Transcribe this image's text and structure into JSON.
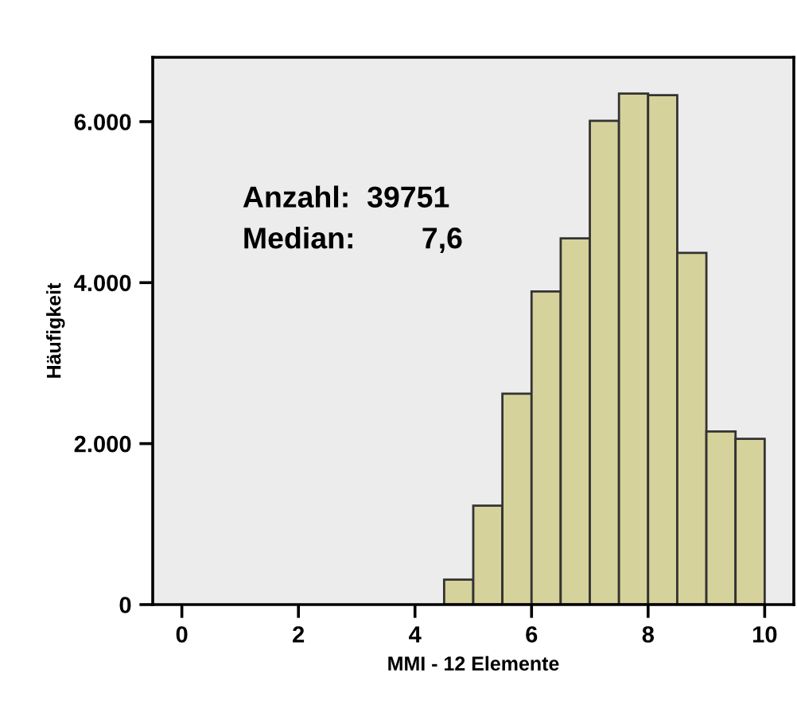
{
  "chart_data": {
    "type": "histogram",
    "xlabel": "MMI - 12 Elemente",
    "ylabel": "Häufigkeit",
    "bins": [
      4.5,
      5.0,
      5.5,
      6.0,
      6.5,
      7.0,
      7.5,
      8.0,
      8.5,
      9.0,
      9.5,
      10.0
    ],
    "values": [
      310,
      1230,
      2620,
      3890,
      4550,
      6010,
      6350,
      6330,
      4370,
      2150,
      2060
    ],
    "color": "#d6d29b",
    "xlim": [
      -0.5,
      10.5
    ],
    "ylim": [
      0,
      6800
    ],
    "xticks": [
      0,
      2,
      4,
      6,
      8,
      10
    ],
    "yticks": [
      0,
      {
        "value": 2000,
        "label": "2.000"
      },
      {
        "value": 4000,
        "label": "4.000"
      },
      {
        "value": 6000,
        "label": "6.000"
      }
    ],
    "grid": false,
    "annotations": [
      "Anzahl:  39751",
      "Median:        7,6"
    ]
  }
}
